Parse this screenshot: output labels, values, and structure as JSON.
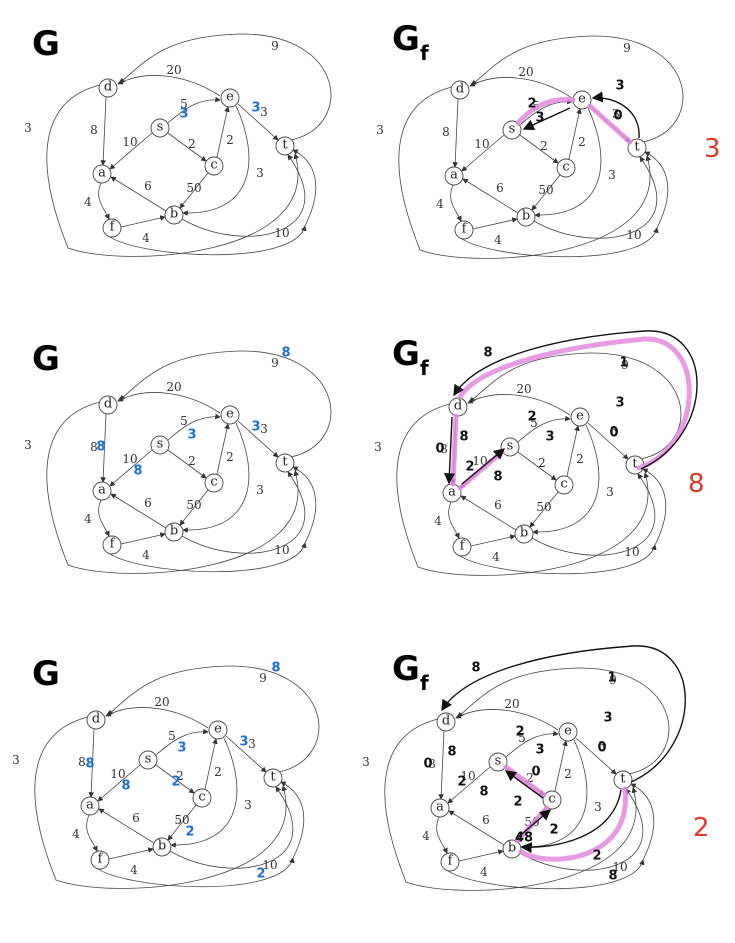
{
  "panels": [
    {
      "row": 0,
      "graph": {
        "title": "G"
      },
      "residual": {
        "title": "G",
        "subscript": "f"
      },
      "bottleneck": "3",
      "flow_labels": [
        "3",
        "3"
      ],
      "residual_labels": [
        "2",
        "3",
        "3",
        "0"
      ]
    },
    {
      "row": 1,
      "graph": {
        "title": "G"
      },
      "residual": {
        "title": "G",
        "subscript": "f"
      },
      "bottleneck": "8",
      "flow_labels": [
        "8",
        "8",
        "8",
        "3",
        "3"
      ],
      "residual_labels": [
        "8",
        "1",
        "2",
        "3",
        "3",
        "0",
        "0",
        "8",
        "2",
        "8"
      ]
    },
    {
      "row": 2,
      "graph": {
        "title": "G"
      },
      "residual": {
        "title": "G",
        "subscript": "f"
      },
      "bottleneck": "2",
      "flow_labels": [
        "8",
        "8",
        "8",
        "3",
        "3",
        "2",
        "2",
        "2"
      ],
      "residual_labels": [
        "8",
        "1",
        "2",
        "3",
        "3",
        "0",
        "0",
        "8",
        "2",
        "8",
        "0",
        "2",
        "2",
        "48",
        "2",
        "8"
      ]
    }
  ],
  "node_names": {
    "s": "s",
    "e": "e",
    "t": "t",
    "d": "d",
    "a": "a",
    "f": "f",
    "b": "b",
    "c": "c"
  },
  "capacities": {
    "d_t": "9",
    "e_d": "20",
    "s_e": "5",
    "e_t": "3",
    "s_a": "10",
    "s_c": "2",
    "c_e": "2",
    "d_a": "8",
    "b_a": "6",
    "b_c": "50",
    "e_b": "3",
    "a_f": "4",
    "f_b": "4",
    "b_t": "10",
    "f_d": "3"
  },
  "colors": {
    "flow": "#1d6fd1",
    "highlight": "#e48adf",
    "bottleneck": "#e03a2a"
  }
}
